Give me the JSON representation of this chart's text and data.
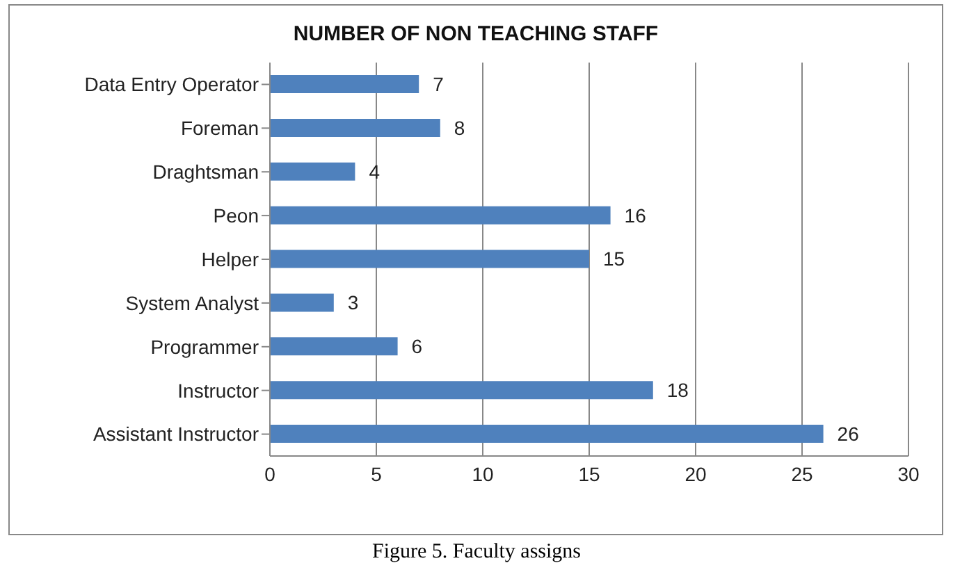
{
  "chart_data": {
    "type": "bar",
    "orientation": "horizontal",
    "title": "NUMBER OF NON TEACHING STAFF",
    "categories": [
      "Data Entry Operator",
      "Foreman",
      "Draghtsman",
      "Peon",
      "Helper",
      "System Analyst",
      "Programmer",
      "Instructor",
      "Assistant Instructor"
    ],
    "values": [
      7,
      8,
      4,
      16,
      15,
      3,
      6,
      18,
      26
    ],
    "color": "#4f81bd",
    "xlim": [
      0,
      30
    ],
    "xticks": [
      0,
      5,
      10,
      15,
      20,
      25,
      30
    ],
    "grid": "x",
    "data_labels": true,
    "annotations": [
      "Figure 5. Faculty assigns"
    ]
  }
}
